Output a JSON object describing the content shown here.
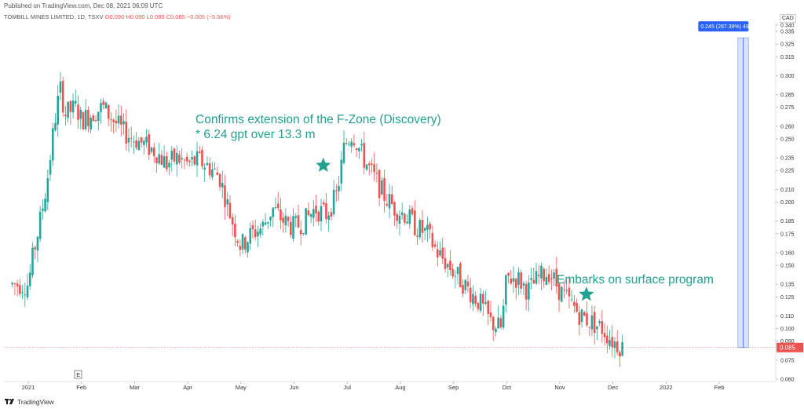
{
  "header": {
    "published": "Published on TradingView.com, Dec 08, 2021 06:09 UTC",
    "symbol": "TOMBILL MINES LIMITED, 1D, TSXV",
    "ohlc": "O0.090  H0.090  L0.085  C0.085  −0.005 (−5.56%)"
  },
  "axis_unit": "CAD",
  "annotations": {
    "line1": "Confirms extension of the F-Zone (Discovery)",
    "line2": "* 6.24 gpt over 13.3 m",
    "line3": "Embarks on surface program"
  },
  "measure_label": "0.245 (287.39%) 49",
  "last_price_label": "0.085",
  "earnings_marker": "E",
  "footer": {
    "brand": "TradingView"
  },
  "colors": {
    "up": "#26a69a",
    "down": "#ef5350",
    "accent": "#22a090",
    "measure": "#2962ff"
  },
  "chart_data": {
    "type": "candlestick",
    "y_ticks": [
      "0.340",
      "0.335",
      "0.325",
      "0.315",
      "0.300",
      "0.285",
      "0.275",
      "0.260",
      "0.250",
      "0.235",
      "0.225",
      "0.210",
      "0.200",
      "0.185",
      "0.175",
      "0.160",
      "0.150",
      "0.135",
      "0.125",
      "0.110",
      "0.100",
      "0.090",
      "0.075",
      "0.060"
    ],
    "y_tick_values": [
      0.34,
      0.335,
      0.325,
      0.315,
      0.3,
      0.285,
      0.275,
      0.26,
      0.25,
      0.235,
      0.225,
      0.21,
      0.2,
      0.185,
      0.175,
      0.16,
      0.15,
      0.135,
      0.125,
      0.11,
      0.1,
      0.09,
      0.075,
      0.06
    ],
    "ylim": [
      0.055,
      0.345
    ],
    "x_ticks": [
      "2021",
      "Feb",
      "Mar",
      "Apr",
      "May",
      "Jun",
      "Jul",
      "Aug",
      "Sep",
      "Oct",
      "Nov",
      "Dec",
      "2022",
      "Feb"
    ],
    "x_tick_months": [
      0,
      1,
      2,
      3,
      4,
      5,
      6,
      7,
      8,
      9,
      10,
      11,
      12,
      13
    ],
    "last_price": 0.085,
    "measure": {
      "from": 0.085,
      "to": 0.33,
      "change": "0.245",
      "percent": "287.39%",
      "bars": 49
    },
    "markers": [
      {
        "type": "star",
        "month": 5.55,
        "price": 0.229
      },
      {
        "type": "star",
        "month": 10.5,
        "price": 0.127
      }
    ],
    "monthly_path": [
      [
        -0.3,
        0.135
      ],
      [
        0.0,
        0.135
      ],
      [
        0.1,
        0.16
      ],
      [
        0.2,
        0.18
      ],
      [
        0.35,
        0.215
      ],
      [
        0.5,
        0.265
      ],
      [
        0.6,
        0.29
      ],
      [
        0.7,
        0.27
      ],
      [
        0.9,
        0.275
      ],
      [
        1.0,
        0.265
      ],
      [
        1.2,
        0.27
      ],
      [
        1.4,
        0.275
      ],
      [
        1.6,
        0.265
      ],
      [
        1.8,
        0.255
      ],
      [
        2.0,
        0.25
      ],
      [
        2.2,
        0.245
      ],
      [
        2.4,
        0.24
      ],
      [
        2.6,
        0.23
      ],
      [
        2.8,
        0.235
      ],
      [
        3.0,
        0.23
      ],
      [
        3.2,
        0.233
      ],
      [
        3.4,
        0.228
      ],
      [
        3.6,
        0.22
      ],
      [
        3.8,
        0.19
      ],
      [
        4.0,
        0.165
      ],
      [
        4.2,
        0.175
      ],
      [
        4.4,
        0.18
      ],
      [
        4.6,
        0.195
      ],
      [
        4.8,
        0.185
      ],
      [
        5.0,
        0.18
      ],
      [
        5.2,
        0.185
      ],
      [
        5.4,
        0.195
      ],
      [
        5.6,
        0.19
      ],
      [
        5.8,
        0.205
      ],
      [
        5.95,
        0.245
      ],
      [
        6.1,
        0.255
      ],
      [
        6.3,
        0.235
      ],
      [
        6.5,
        0.22
      ],
      [
        6.7,
        0.205
      ],
      [
        6.9,
        0.195
      ],
      [
        7.1,
        0.19
      ],
      [
        7.3,
        0.18
      ],
      [
        7.5,
        0.175
      ],
      [
        7.7,
        0.16
      ],
      [
        7.9,
        0.15
      ],
      [
        8.1,
        0.14
      ],
      [
        8.3,
        0.13
      ],
      [
        8.5,
        0.12
      ],
      [
        8.7,
        0.105
      ],
      [
        8.9,
        0.1
      ],
      [
        9.0,
        0.14
      ],
      [
        9.2,
        0.14
      ],
      [
        9.4,
        0.13
      ],
      [
        9.6,
        0.14
      ],
      [
        9.8,
        0.145
      ],
      [
        10.0,
        0.13
      ],
      [
        10.2,
        0.12
      ],
      [
        10.4,
        0.11
      ],
      [
        10.6,
        0.105
      ],
      [
        10.8,
        0.1
      ],
      [
        11.0,
        0.09
      ],
      [
        11.2,
        0.085
      ]
    ]
  }
}
